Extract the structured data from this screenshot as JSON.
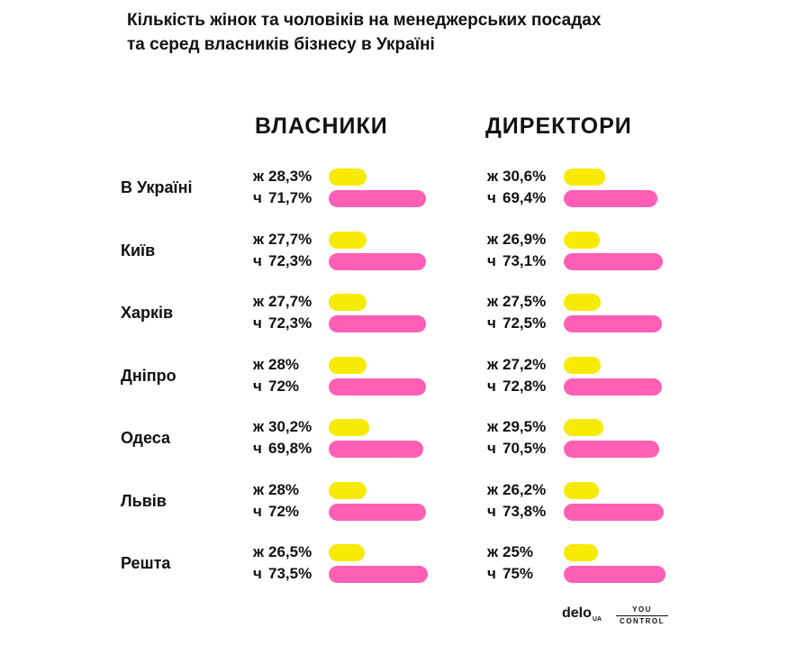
{
  "title_lines": [
    "Кількість жінок та чоловіків на менеджерських посадах",
    "та серед власників бізнесу в Україні"
  ],
  "colors": {
    "women": "#f7ea05",
    "men": "#ff5fb4"
  },
  "chart_data": {
    "type": "bar",
    "orientation": "horizontal",
    "categories": [
      "В Україні",
      "Київ",
      "Харків",
      "Дніпро",
      "Одеса",
      "Львів",
      "Решта"
    ],
    "groups": [
      {
        "name": "ВЛАСНИКИ",
        "series": [
          {
            "name": "ж",
            "values": [
              28.3,
              27.7,
              27.7,
              28,
              30.2,
              28,
              26.5
            ],
            "labels": [
              "28,3%",
              "27,7%",
              "27,7%",
              "28%",
              "30,2%",
              "28%",
              "26,5%"
            ]
          },
          {
            "name": "ч",
            "values": [
              71.7,
              72.3,
              72.3,
              72,
              69.8,
              72,
              73.5
            ],
            "labels": [
              "71,7%",
              "72,3%",
              "72,3%",
              "72%",
              "69,8%",
              "72%",
              "73,5%"
            ]
          }
        ]
      },
      {
        "name": "ДИРЕКТОРИ",
        "series": [
          {
            "name": "ж",
            "values": [
              30.6,
              26.9,
              27.5,
              27.2,
              29.5,
              26.2,
              25
            ],
            "labels": [
              "30,6%",
              "26,9%",
              "27,5%",
              "27,2%",
              "29,5%",
              "26,2%",
              "25%"
            ]
          },
          {
            "name": "ч",
            "values": [
              69.4,
              73.1,
              72.5,
              72.8,
              70.5,
              73.8,
              75
            ],
            "labels": [
              "69,4%",
              "73,1%",
              "72,5%",
              "72,8%",
              "70,5%",
              "73,8%",
              "75%"
            ]
          }
        ]
      }
    ]
  },
  "footer": {
    "delo": "delo",
    "delo_suffix": "UA",
    "yc_top": "YOU",
    "yc_bottom": "CONTROL"
  }
}
